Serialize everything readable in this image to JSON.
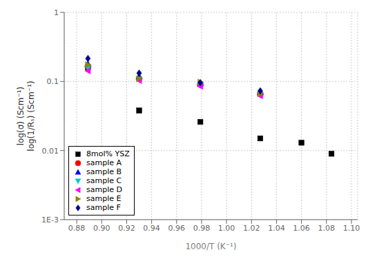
{
  "chart_data": {
    "type": "scatter",
    "title": "",
    "xlabel": "1000/T (K⁻¹)",
    "ylabel": "log(σ) (Scm⁻¹)\nlog(1/Rₛ) (Scm⁻¹)",
    "xlim": [
      0.87,
      1.105
    ],
    "ylim": [
      0.001,
      1.0
    ],
    "xticks": [
      0.88,
      {
        "value": 0.9,
        "label": "0.90"
      },
      0.92,
      0.94,
      0.96,
      0.98,
      {
        "value": 1.0,
        "label": "1.00"
      },
      1.02,
      1.04,
      1.06,
      1.08,
      {
        "value": 1.1,
        "label": "1.10"
      }
    ],
    "yticks": [
      {
        "value": 0.001,
        "label": "1E-3"
      },
      0.01,
      0.1,
      1
    ],
    "log": "y",
    "grid": true,
    "legend": "lower left",
    "series": [
      {
        "name": "8mol% YSZ",
        "color": "#000000",
        "marker": "square",
        "x": [
          0.889,
          0.93,
          0.979,
          1.027,
          1.06,
          1.084
        ],
        "values": [
          0.16,
          0.038,
          0.026,
          0.015,
          0.013,
          0.009
        ]
      },
      {
        "name": "sample A",
        "color": "#ff0000",
        "marker": "circle",
        "x": [
          0.889,
          0.93,
          0.979,
          1.027
        ],
        "values": [
          0.165,
          0.11,
          0.09,
          0.066
        ]
      },
      {
        "name": "sample B",
        "color": "#0000ff",
        "marker": "triangle-up",
        "x": [
          0.889,
          0.93,
          0.979,
          1.027
        ],
        "values": [
          0.18,
          0.118,
          0.093,
          0.069
        ]
      },
      {
        "name": "sample C",
        "color": "#00cccc",
        "marker": "triangle-down",
        "x": [
          0.889,
          0.93,
          0.979,
          1.027
        ],
        "values": [
          0.158,
          0.108,
          0.088,
          0.064
        ]
      },
      {
        "name": "sample D",
        "color": "#ff00ff",
        "marker": "triangle-left",
        "x": [
          0.889,
          0.93,
          0.979,
          1.027
        ],
        "values": [
          0.142,
          0.103,
          0.085,
          0.062
        ]
      },
      {
        "name": "sample E",
        "color": "#888800",
        "marker": "triangle-right",
        "x": [
          0.889,
          0.93,
          0.979,
          1.027
        ],
        "values": [
          0.175,
          0.11,
          0.098,
          0.066
        ]
      },
      {
        "name": "sample F",
        "color": "#00008B",
        "marker": "diamond",
        "x": [
          0.889,
          0.93,
          0.979,
          1.027
        ],
        "values": [
          0.215,
          0.132,
          0.096,
          0.073
        ]
      }
    ]
  }
}
